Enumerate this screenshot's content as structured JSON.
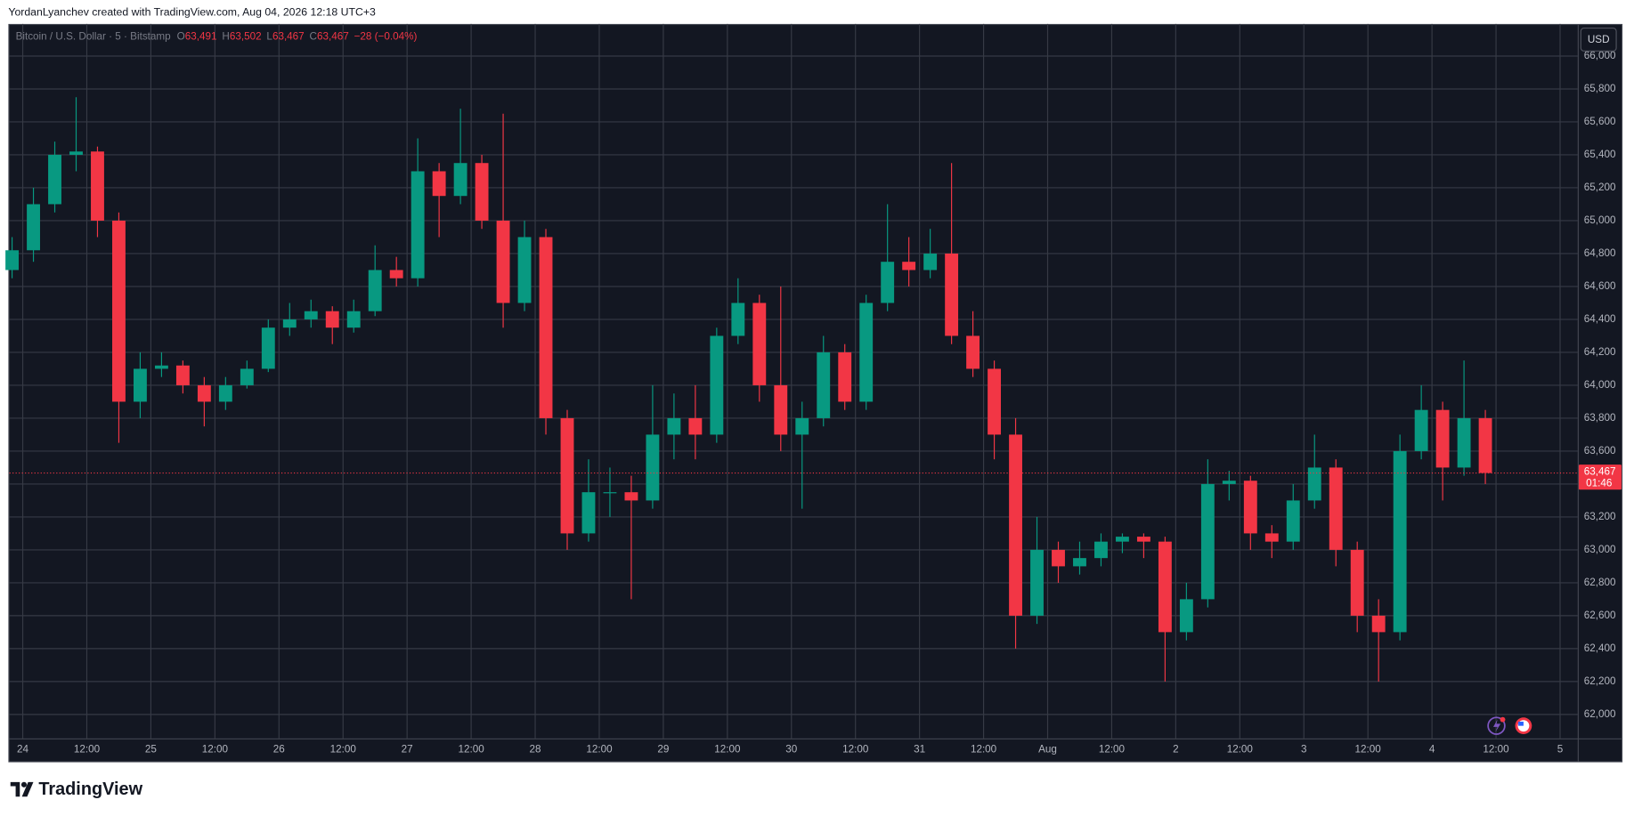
{
  "header": "YordanLyanchev created with TradingView.com, Aug 04, 2026 12:18 UTC+3",
  "brand": "TradingView",
  "chart_data": {
    "type": "candlestick",
    "legend": {
      "symbol": "Bitcoin / U.S. Dollar · 5 · Bitstamp",
      "fields": [
        {
          "key": "O",
          "value": "63,491"
        },
        {
          "key": "H",
          "value": "63,502"
        },
        {
          "key": "L",
          "value": "63,467"
        },
        {
          "key": "C",
          "value": "63,467"
        }
      ],
      "change": "−28 (−0.04%)"
    },
    "currency": "USD",
    "last_price": 63467,
    "last_price_label": "63,467",
    "countdown": "01:46",
    "up_color": "#089981",
    "down_color": "#f23645",
    "grid": true,
    "xlim": [
      -2.5,
      291.3
    ],
    "ylim": [
      61855,
      66195
    ],
    "xticks": [
      {
        "value": 0,
        "label": "24"
      },
      {
        "value": 12,
        "label": "12:00"
      },
      {
        "value": 24,
        "label": "25"
      },
      {
        "value": 36,
        "label": "12:00"
      },
      {
        "value": 48,
        "label": "26"
      },
      {
        "value": 60,
        "label": "12:00"
      },
      {
        "value": 72,
        "label": "27"
      },
      {
        "value": 84,
        "label": "12:00"
      },
      {
        "value": 96,
        "label": "28"
      },
      {
        "value": 108,
        "label": "12:00"
      },
      {
        "value": 120,
        "label": "29"
      },
      {
        "value": 132,
        "label": "12:00"
      },
      {
        "value": 144,
        "label": "30"
      },
      {
        "value": 156,
        "label": "12:00"
      },
      {
        "value": 168,
        "label": "31"
      },
      {
        "value": 180,
        "label": "12:00"
      },
      {
        "value": 192,
        "label": "Aug"
      },
      {
        "value": 204,
        "label": "12:00"
      },
      {
        "value": 216,
        "label": "2"
      },
      {
        "value": 228,
        "label": "12:00"
      },
      {
        "value": 240,
        "label": "3"
      },
      {
        "value": 252,
        "label": "12:00"
      },
      {
        "value": 264,
        "label": "4"
      },
      {
        "value": 276,
        "label": "12:00"
      },
      {
        "value": 288,
        "label": "5"
      }
    ],
    "yticks": [
      {
        "value": 62000,
        "label": "62,000"
      },
      {
        "value": 62200,
        "label": "62,200"
      },
      {
        "value": 62400,
        "label": "62,400"
      },
      {
        "value": 62600,
        "label": "62,600"
      },
      {
        "value": 62800,
        "label": "62,800"
      },
      {
        "value": 63000,
        "label": "63,000"
      },
      {
        "value": 63200,
        "label": "63,200"
      },
      {
        "value": 63400,
        "label": "63,400"
      },
      {
        "value": 63600,
        "label": "63,600"
      },
      {
        "value": 63800,
        "label": "63,800"
      },
      {
        "value": 64000,
        "label": "64,000"
      },
      {
        "value": 64200,
        "label": "64,200"
      },
      {
        "value": 64400,
        "label": "64,400"
      },
      {
        "value": 64600,
        "label": "64,600"
      },
      {
        "value": 64800,
        "label": "64,800"
      },
      {
        "value": 65000,
        "label": "65,000"
      },
      {
        "value": 65200,
        "label": "65,200"
      },
      {
        "value": 65400,
        "label": "65,400"
      },
      {
        "value": 65600,
        "label": "65,600"
      },
      {
        "value": 65800,
        "label": "65,800"
      },
      {
        "value": 66000,
        "label": "66,000"
      }
    ],
    "x": [
      -2,
      2,
      6,
      10,
      14,
      18,
      22,
      26,
      30,
      34,
      38,
      42,
      46,
      50,
      54,
      58,
      62,
      66,
      70,
      74,
      78,
      82,
      86,
      90,
      94,
      98,
      102,
      106,
      110,
      114,
      118,
      122,
      126,
      130,
      134,
      138,
      142,
      146,
      150,
      154,
      158,
      162,
      166,
      170,
      174,
      178,
      182,
      186,
      190,
      194,
      198,
      202,
      206,
      210,
      214,
      218,
      222,
      226,
      230,
      234,
      238,
      242,
      246,
      250,
      254,
      258,
      262,
      266,
      270,
      274
    ],
    "open": [
      64700,
      64820,
      65100,
      65400,
      65420,
      65000,
      63900,
      64100,
      64120,
      64000,
      63900,
      64000,
      64100,
      64350,
      64400,
      64450,
      64350,
      64450,
      64700,
      64650,
      65300,
      65150,
      65350,
      65000,
      64500,
      64900,
      63800,
      63100,
      63350,
      63350,
      63300,
      63700,
      63800,
      63700,
      64300,
      64500,
      64000,
      63700,
      63800,
      64200,
      63900,
      64500,
      64750,
      64700,
      64800,
      64300,
      64100,
      63700,
      62600,
      63000,
      62900,
      62950,
      63050,
      63080,
      63050,
      62500,
      62700,
      63400,
      63420,
      63100,
      63050,
      63300,
      63500,
      63000,
      62600,
      62500,
      63600,
      63850,
      63500,
      63800
    ],
    "high": [
      64900,
      65200,
      65480,
      65750,
      65450,
      65050,
      64200,
      64200,
      64150,
      64050,
      64050,
      64150,
      64400,
      64500,
      64520,
      64480,
      64520,
      64850,
      64780,
      65500,
      65350,
      65680,
      65400,
      65650,
      65000,
      64950,
      63850,
      63550,
      63500,
      63450,
      64000,
      63950,
      64000,
      64350,
      64650,
      64550,
      64600,
      63900,
      64300,
      64250,
      64550,
      65100,
      64900,
      64950,
      65350,
      64450,
      64150,
      63800,
      63200,
      63050,
      63050,
      63100,
      63100,
      63100,
      63080,
      62800,
      63550,
      63480,
      63450,
      63150,
      63400,
      63700,
      63550,
      63050,
      62700,
      63700,
      64000,
      63900,
      64150,
      63850
    ],
    "low": [
      64650,
      64750,
      65050,
      65300,
      64900,
      63650,
      63800,
      64050,
      63950,
      63750,
      63850,
      63980,
      64080,
      64300,
      64350,
      64250,
      64320,
      64420,
      64600,
      64600,
      64900,
      65100,
      64950,
      64350,
      64450,
      63700,
      63000,
      63050,
      63200,
      62700,
      63250,
      63550,
      63550,
      63650,
      64250,
      63900,
      63600,
      63250,
      63750,
      63850,
      63850,
      64450,
      64600,
      64650,
      64250,
      64050,
      63550,
      62400,
      62550,
      62800,
      62850,
      62900,
      62980,
      62950,
      62200,
      62450,
      62650,
      63300,
      63000,
      62950,
      63000,
      63250,
      62900,
      62500,
      62200,
      62450,
      63550,
      63300,
      63450,
      63400
    ],
    "close": [
      64820,
      65100,
      65400,
      65420,
      65000,
      63900,
      64100,
      64120,
      64000,
      63900,
      64000,
      64100,
      64350,
      64400,
      64450,
      64350,
      64450,
      64700,
      64650,
      65300,
      65150,
      65350,
      65000,
      64500,
      64900,
      63800,
      63100,
      63350,
      63350,
      63300,
      63700,
      63800,
      63700,
      64300,
      64500,
      64000,
      63700,
      63800,
      64200,
      63900,
      64500,
      64750,
      64700,
      64800,
      64300,
      64100,
      63700,
      62600,
      63000,
      62900,
      62950,
      63050,
      63080,
      63050,
      62500,
      62700,
      63400,
      63420,
      63100,
      63050,
      63300,
      63500,
      63000,
      62600,
      62500,
      63600,
      63850,
      63500,
      63800,
      63467
    ]
  }
}
